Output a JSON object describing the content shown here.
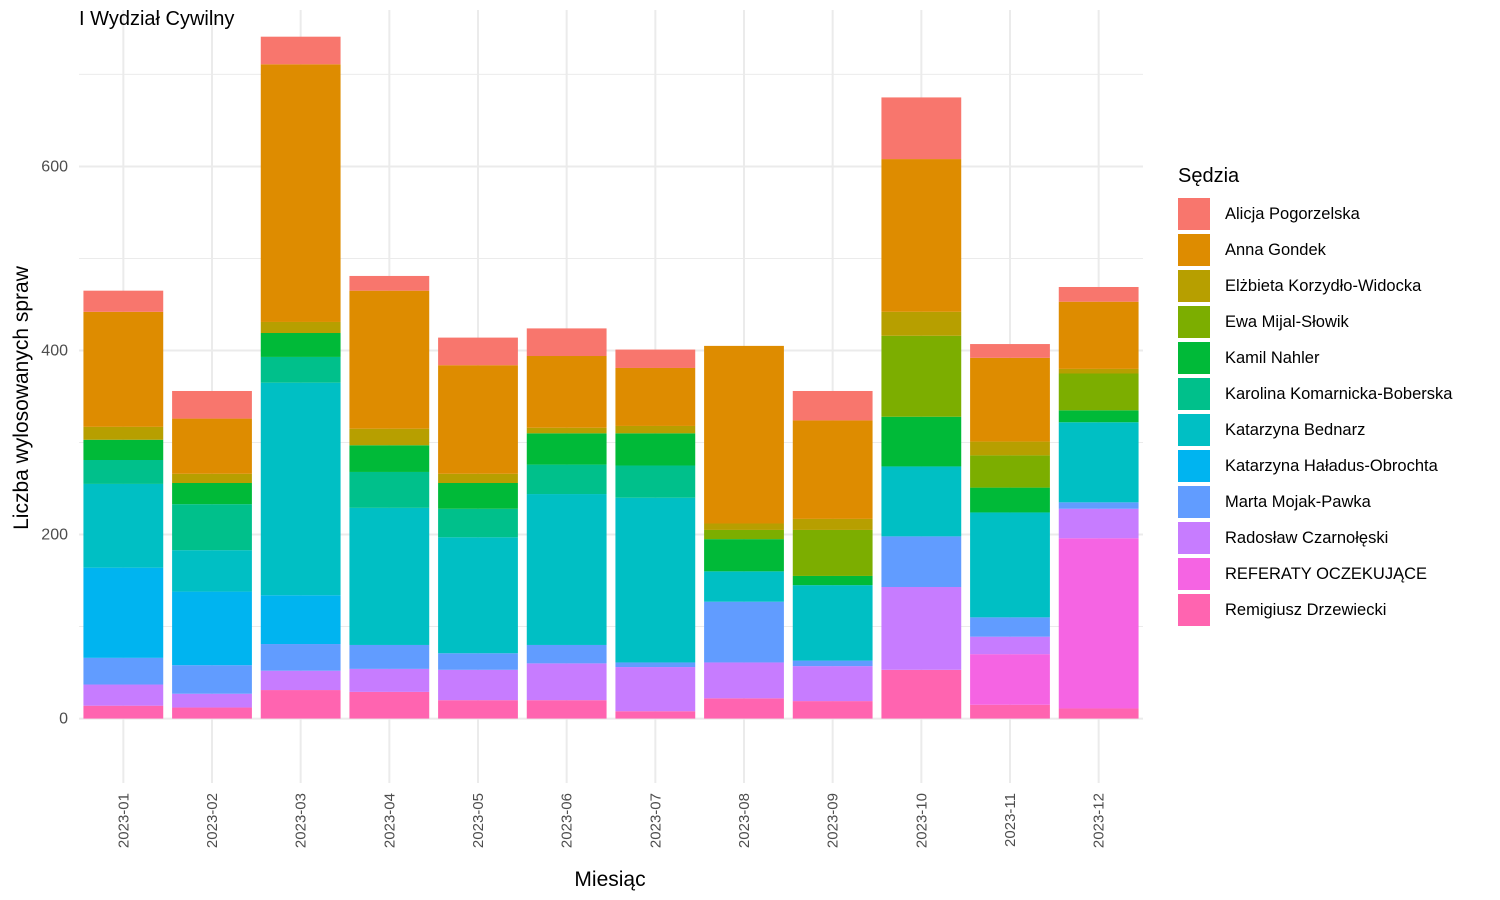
{
  "chart_data": {
    "type": "bar",
    "stacked": true,
    "title": "I Wydział Cywilny",
    "xlabel": "Miesiąc",
    "ylabel": "Liczba wylosowanych spraw",
    "ylim": [
      -70,
      770
    ],
    "yticks": [
      0,
      200,
      400,
      600
    ],
    "grid": true,
    "legend_title": "Sędzia",
    "legend_position": "right",
    "categories": [
      "2023-01",
      "2023-02",
      "2023-03",
      "2023-04",
      "2023-05",
      "2023-06",
      "2023-07",
      "2023-08",
      "2023-09",
      "2023-10",
      "2023-11",
      "2023-12"
    ],
    "series": [
      {
        "name": "Alicja Pogorzelska",
        "color": "#F8766D",
        "values": [
          23,
          30,
          30,
          16,
          30,
          30,
          20,
          0,
          32,
          67,
          15,
          16
        ]
      },
      {
        "name": "Anna Gondek",
        "color": "#DE8C00",
        "values": [
          125,
          60,
          280,
          150,
          118,
          78,
          63,
          193,
          107,
          166,
          91,
          73
        ]
      },
      {
        "name": "Elżbieta Korzydło-Widocka",
        "color": "#B79F00",
        "values": [
          14,
          10,
          12,
          18,
          10,
          6,
          8,
          7,
          12,
          26,
          15,
          5
        ]
      },
      {
        "name": "Ewa Mijal-Słowik",
        "color": "#7CAE00",
        "values": [
          0,
          0,
          0,
          0,
          0,
          0,
          0,
          10,
          50,
          88,
          35,
          40
        ]
      },
      {
        "name": "Kamil Nahler",
        "color": "#00BA38",
        "values": [
          22,
          23,
          26,
          29,
          28,
          34,
          35,
          35,
          10,
          54,
          27,
          13
        ]
      },
      {
        "name": "Karolina Komarnicka-Boberska",
        "color": "#00C08B",
        "values": [
          26,
          50,
          28,
          39,
          31,
          32,
          35,
          0,
          0,
          0,
          0,
          0
        ]
      },
      {
        "name": "Katarzyna Bednarz",
        "color": "#00BFC4",
        "values": [
          91,
          45,
          231,
          149,
          126,
          164,
          179,
          33,
          82,
          76,
          114,
          87
        ]
      },
      {
        "name": "Katarzyna Haładus-Obrochta",
        "color": "#00B4F0",
        "values": [
          98,
          80,
          53,
          0,
          0,
          0,
          0,
          0,
          0,
          0,
          0,
          0
        ]
      },
      {
        "name": "Marta Mojak-Pawka",
        "color": "#619CFF",
        "values": [
          29,
          31,
          29,
          26,
          18,
          20,
          5,
          66,
          6,
          55,
          21,
          7
        ]
      },
      {
        "name": "Radosław Czarnołęski",
        "color": "#C77CFF",
        "values": [
          23,
          15,
          21,
          25,
          33,
          40,
          48,
          39,
          38,
          90,
          19,
          32
        ]
      },
      {
        "name": "REFERATY OCZEKUJĄCE",
        "color": "#F564E3",
        "values": [
          0,
          0,
          0,
          0,
          0,
          0,
          0,
          0,
          0,
          0,
          55,
          185
        ]
      },
      {
        "name": "Remigiusz Drzewiecki",
        "color": "#FF64B0",
        "values": [
          14,
          12,
          31,
          29,
          20,
          20,
          8,
          22,
          19,
          53,
          15,
          11
        ]
      }
    ]
  }
}
